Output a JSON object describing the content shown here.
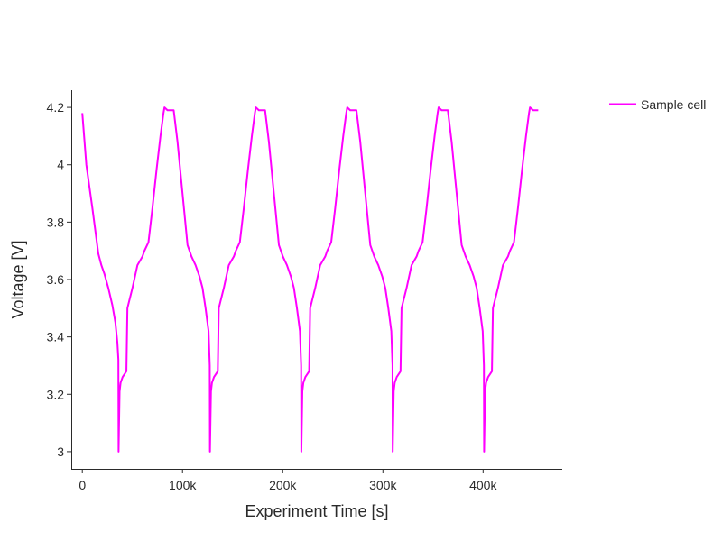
{
  "chart_data": {
    "type": "line",
    "title": "",
    "xlabel": "Experiment Time [s]",
    "ylabel": "Voltage [V]",
    "xlim": [
      -11000,
      479000
    ],
    "ylim": [
      2.94,
      4.26
    ],
    "xticks": [
      {
        "value": 0,
        "label": "0"
      },
      {
        "value": 100000,
        "label": "100k"
      },
      {
        "value": 200000,
        "label": "200k"
      },
      {
        "value": 300000,
        "label": "300k"
      },
      {
        "value": 400000,
        "label": "400k"
      }
    ],
    "yticks": [
      {
        "value": 3.0,
        "label": "3"
      },
      {
        "value": 3.2,
        "label": "3.2"
      },
      {
        "value": 3.4,
        "label": "3.4"
      },
      {
        "value": 3.6,
        "label": "3.6"
      },
      {
        "value": 3.8,
        "label": "3.8"
      },
      {
        "value": 4.0,
        "label": "4"
      },
      {
        "value": 4.2,
        "label": "4.2"
      }
    ],
    "grid": false,
    "legend_position": "top-right",
    "series": [
      {
        "name": "Sample cell",
        "color": "#ff00ff",
        "x": [
          0,
          4000,
          10000,
          16000,
          19000,
          22000,
          26000,
          30000,
          33000,
          35000,
          36000,
          36200,
          37200,
          38200,
          40200,
          44000,
          45000,
          50000,
          55000,
          60000,
          62000,
          66000,
          70000,
          74000,
          78000,
          81000,
          82000,
          85000,
          88000,
          91200,
          95000,
          100000,
          105000,
          109000,
          113000,
          117000,
          120000,
          123000,
          126000,
          127200,
          127400,
          128400,
          129400,
          131400,
          135200,
          136200,
          141200,
          146200,
          151200,
          153200,
          157200,
          161200,
          165200,
          169200,
          172200,
          173200,
          176200,
          179200,
          182400,
          186200,
          191200,
          196200,
          200200,
          204200,
          208200,
          211200,
          214200,
          217200,
          218400,
          218600,
          219600,
          220600,
          222600,
          226400,
          227400,
          232400,
          237400,
          242400,
          244400,
          248400,
          252400,
          256400,
          260400,
          263400,
          264400,
          267400,
          270400,
          273600,
          277400,
          282400,
          287400,
          291400,
          295400,
          299400,
          302400,
          305400,
          308400,
          309600,
          309800,
          310800,
          311800,
          313800,
          317600,
          318600,
          323600,
          328600,
          333600,
          335600,
          339600,
          343600,
          347600,
          351600,
          354600,
          355600,
          358600,
          361600,
          364800,
          368600,
          373600,
          378600,
          382600,
          386600,
          390600,
          393600,
          396600,
          399600,
          400800,
          401000,
          402000,
          403000,
          405000,
          408800,
          409800,
          414800,
          419800,
          424800,
          426800,
          430800,
          434800,
          438800,
          442800,
          445800,
          446800,
          450000,
          455000
        ],
        "y": [
          4.18,
          4.0,
          3.85,
          3.69,
          3.65,
          3.62,
          3.57,
          3.51,
          3.45,
          3.38,
          3.32,
          3.0,
          3.21,
          3.24,
          3.26,
          3.28,
          3.5,
          3.57,
          3.65,
          3.68,
          3.7,
          3.73,
          3.85,
          3.98,
          4.1,
          4.18,
          4.2,
          4.19,
          4.19,
          4.19,
          4.08,
          3.9,
          3.72,
          3.68,
          3.65,
          3.61,
          3.57,
          3.5,
          3.42,
          3.3,
          3.0,
          3.21,
          3.24,
          3.26,
          3.28,
          3.5,
          3.57,
          3.65,
          3.68,
          3.7,
          3.73,
          3.85,
          3.98,
          4.1,
          4.18,
          4.2,
          4.19,
          4.19,
          4.19,
          4.08,
          3.9,
          3.72,
          3.68,
          3.65,
          3.61,
          3.57,
          3.5,
          3.42,
          3.3,
          3.0,
          3.21,
          3.24,
          3.26,
          3.28,
          3.5,
          3.57,
          3.65,
          3.68,
          3.7,
          3.73,
          3.85,
          3.98,
          4.1,
          4.18,
          4.2,
          4.19,
          4.19,
          4.19,
          4.08,
          3.9,
          3.72,
          3.68,
          3.65,
          3.61,
          3.57,
          3.5,
          3.42,
          3.3,
          3.0,
          3.21,
          3.24,
          3.26,
          3.28,
          3.5,
          3.57,
          3.65,
          3.68,
          3.7,
          3.73,
          3.85,
          3.98,
          4.1,
          4.18,
          4.2,
          4.19,
          4.19,
          4.19,
          4.08,
          3.9,
          3.72,
          3.68,
          3.65,
          3.61,
          3.57,
          3.5,
          3.42,
          3.3,
          3.0,
          3.21,
          3.24,
          3.26,
          3.28,
          3.5,
          3.57,
          3.65,
          3.68,
          3.7,
          3.73,
          3.85,
          3.98,
          4.1,
          4.18,
          4.2,
          4.19,
          4.19
        ]
      }
    ]
  }
}
